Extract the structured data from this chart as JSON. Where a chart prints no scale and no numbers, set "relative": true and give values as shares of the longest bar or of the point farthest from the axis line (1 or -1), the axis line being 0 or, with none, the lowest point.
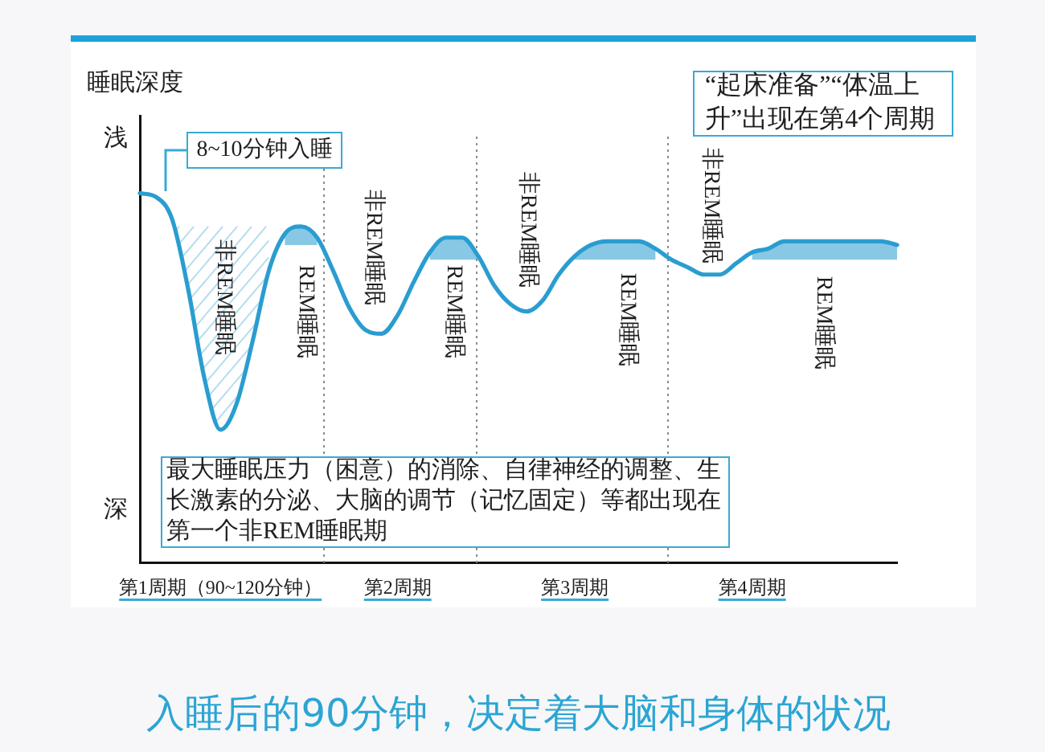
{
  "chart_data": {
    "type": "line",
    "title": "入睡后的90分钟，决定着大脑和身体的状况",
    "ylabel": "睡眠深度",
    "relative": true,
    "categories": [
      null,
      null,
      null,
      null,
      null,
      "第1周期（90~120分钟）",
      null,
      null,
      null,
      null,
      null,
      null,
      null,
      null,
      null,
      null,
      "第2周期",
      null,
      null,
      null,
      null,
      null,
      null,
      null,
      null,
      null,
      null,
      "第3周期",
      null,
      null,
      null,
      null,
      null,
      null,
      null,
      null,
      null,
      null,
      "第4周期",
      null,
      null,
      null,
      null,
      null,
      null,
      null,
      null,
      null
    ],
    "series": [
      {
        "type": "line",
        "color": "#2a9dd0",
        "values": [
          1,
          0.99,
          0.93,
          0.74,
          0.5,
          0.36,
          0.43,
          0.6,
          0.79,
          0.89,
          0.91,
          0.88,
          0.79,
          0.69,
          0.63,
          0.62,
          0.67,
          0.76,
          0.84,
          0.88,
          0.88,
          0.83,
          0.75,
          0.7,
          0.68,
          0.71,
          0.78,
          0.83,
          0.86,
          0.87,
          0.87,
          0.87,
          0.85,
          0.82,
          0.8,
          0.78,
          0.78,
          0.81,
          0.84,
          0.85,
          0.87,
          0.87,
          0.87,
          0.87,
          0.87,
          0.87,
          0.87,
          0.86
        ],
        "lower": [
          null,
          null,
          null,
          null,
          null,
          null,
          null,
          null,
          null,
          0.86,
          0.86,
          0.86,
          null,
          null,
          null,
          null,
          null,
          null,
          0.82,
          0.82,
          0.82,
          0.82,
          null,
          null,
          null,
          null,
          null,
          0.82,
          0.82,
          0.82,
          0.82,
          0.82,
          0.82,
          null,
          null,
          null,
          null,
          null,
          0.82,
          0.82,
          0.82,
          0.82,
          0.82,
          0.82,
          0.82,
          0.82,
          0.82,
          0.82
        ],
        "upper": [
          null,
          null,
          null,
          null,
          null,
          null,
          null,
          null,
          null,
          0.89,
          0.91,
          0.88,
          null,
          null,
          null,
          null,
          null,
          null,
          0.84,
          0.88,
          0.88,
          0.83,
          null,
          null,
          null,
          null,
          null,
          0.83,
          0.86,
          0.87,
          0.87,
          0.87,
          0.85,
          null,
          null,
          null,
          null,
          null,
          0.84,
          0.85,
          0.87,
          0.87,
          0.87,
          0.87,
          0.87,
          0.87,
          0.87,
          0.86
        ]
      }
    ],
    "annotations": [
      "8~10分钟入睡",
      "“起床准备”“体温上升”出现在第4个周期",
      "最大睡眠压力（困意）的消除、自律神经的调整、生长激素的分泌、大脑的调节（记忆固定）等都出现在第一个非REM睡眠期",
      "非REM睡眠",
      "REM睡眠",
      "非REM睡眠",
      "REM睡眠",
      "非REM睡眠",
      "REM睡眠",
      "非REM睡眠",
      "REM睡眠",
      "浅",
      "深"
    ]
  }
}
